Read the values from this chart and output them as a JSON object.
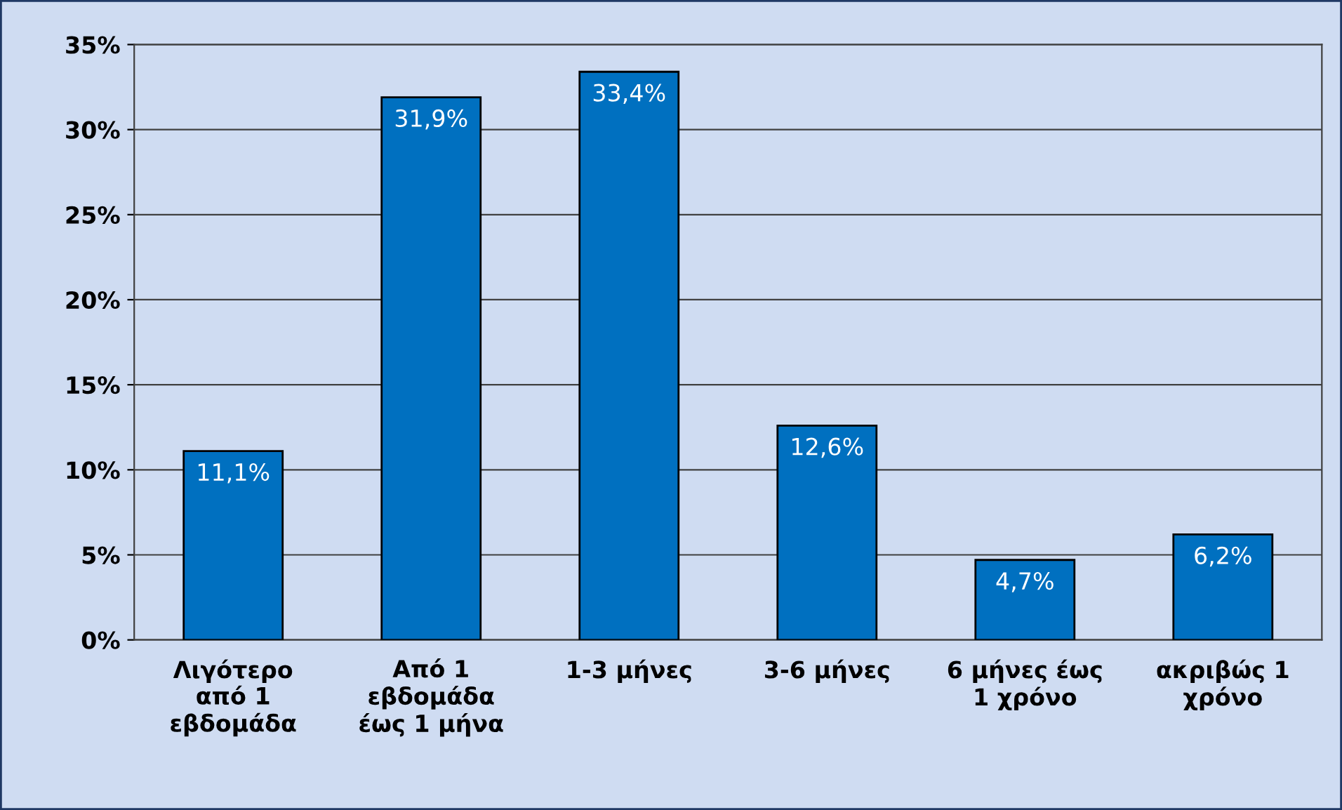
{
  "chart_data": {
    "type": "bar",
    "categories": [
      "Λιγότερο\nαπό 1\nεβδομάδα",
      "Από 1\nεβδομάδα\nέως 1 μήνα",
      "1-3 μήνες",
      "3-6 μήνες",
      "6 μήνες έως\n1 χρόνο",
      "ακριβώς 1\nχρόνο"
    ],
    "values": [
      11.1,
      31.9,
      33.4,
      12.6,
      4.7,
      6.2
    ],
    "value_labels": [
      "11,1%",
      "31,9%",
      "33,4%",
      "12,6%",
      "4,7%",
      "6,2%"
    ],
    "color": "#0070c0",
    "ylim": [
      0,
      35
    ],
    "yticks": [
      {
        "value": 0,
        "label": "0%"
      },
      {
        "value": 5,
        "label": "5%"
      },
      {
        "value": 10,
        "label": "10%"
      },
      {
        "value": 15,
        "label": "15%"
      },
      {
        "value": 20,
        "label": "20%"
      },
      {
        "value": 25,
        "label": "25%"
      },
      {
        "value": 30,
        "label": "30%"
      },
      {
        "value": 35,
        "label": "35%"
      }
    ],
    "grid": "y",
    "legend": false
  }
}
